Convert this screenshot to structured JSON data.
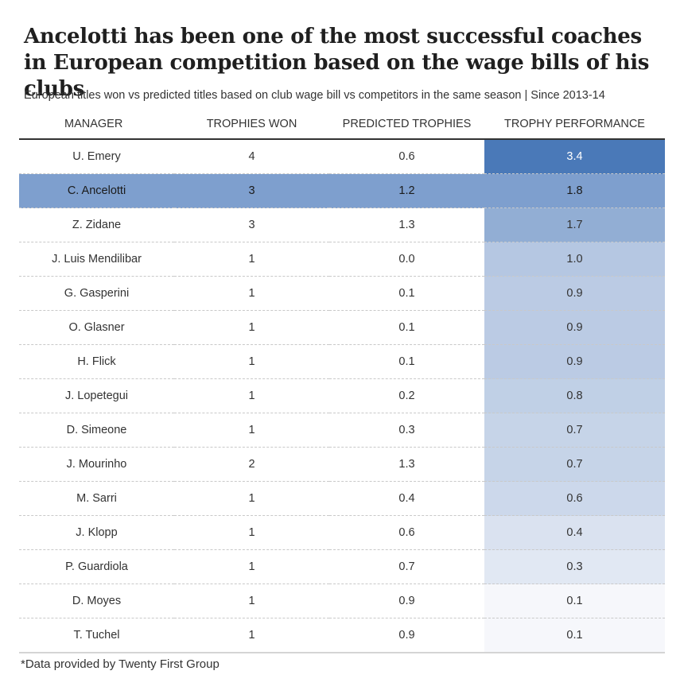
{
  "title": "Ancelotti has been one of the most successful coaches in European competition based on the wage bills of his clubs",
  "subtitle": "European titles won vs predicted titles based on club wage bill vs competitors in the same season | Since 2013-14",
  "footnote": "*Data provided by Twenty First Group",
  "colors": {
    "highlight_row": "#7e9fce",
    "performance_max": "#4a79b8",
    "performance_min": "#f6f7fb"
  },
  "chart_data": {
    "type": "table",
    "title": "Ancelotti has been one of the most successful coaches in European competition based on the wage bills of his clubs",
    "subtitle": "European titles won vs predicted titles based on club wage bill vs competitors in the same season | Since 2013-14",
    "columns": [
      "MANAGER",
      "TROPHIES WON",
      "PREDICTED TROPHIES",
      "TROPHY PERFORMANCE"
    ],
    "highlighted_manager": "C. Ancelotti",
    "rows": [
      {
        "manager": "U. Emery",
        "won": "4",
        "predicted": "0.6",
        "performance": "3.4"
      },
      {
        "manager": "C. Ancelotti",
        "won": "3",
        "predicted": "1.2",
        "performance": "1.8"
      },
      {
        "manager": "Z. Zidane",
        "won": "3",
        "predicted": "1.3",
        "performance": "1.7"
      },
      {
        "manager": "J. Luis Mendilibar",
        "won": "1",
        "predicted": "0.0",
        "performance": "1.0"
      },
      {
        "manager": "G. Gasperini",
        "won": "1",
        "predicted": "0.1",
        "performance": "0.9"
      },
      {
        "manager": "O. Glasner",
        "won": "1",
        "predicted": "0.1",
        "performance": "0.9"
      },
      {
        "manager": "H. Flick",
        "won": "1",
        "predicted": "0.1",
        "performance": "0.9"
      },
      {
        "manager": "J. Lopetegui",
        "won": "1",
        "predicted": "0.2",
        "performance": "0.8"
      },
      {
        "manager": "D. Simeone",
        "won": "1",
        "predicted": "0.3",
        "performance": "0.7"
      },
      {
        "manager": "J. Mourinho",
        "won": "2",
        "predicted": "1.3",
        "performance": "0.7"
      },
      {
        "manager": "M. Sarri",
        "won": "1",
        "predicted": "0.4",
        "performance": "0.6"
      },
      {
        "manager": "J. Klopp",
        "won": "1",
        "predicted": "0.6",
        "performance": "0.4"
      },
      {
        "manager": "P. Guardiola",
        "won": "1",
        "predicted": "0.7",
        "performance": "0.3"
      },
      {
        "manager": "D. Moyes",
        "won": "1",
        "predicted": "0.9",
        "performance": "0.1"
      },
      {
        "manager": "T. Tuchel",
        "won": "1",
        "predicted": "0.9",
        "performance": "0.1"
      }
    ]
  }
}
